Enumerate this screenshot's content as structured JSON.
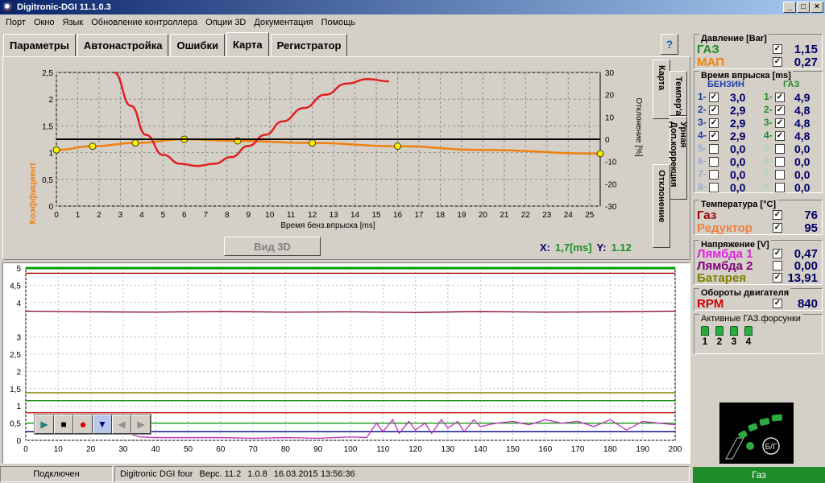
{
  "window": {
    "title": "Digitronic-DGI  11.1.0.3",
    "min": "_",
    "max": "□",
    "close": "×"
  },
  "menu": [
    "Порт",
    "Окно",
    "Язык",
    "Обновление контроллера",
    "Опции 3D",
    "Документация",
    "Помощь"
  ],
  "tabs": [
    "Параметры",
    "Автонастройка",
    "Ошибки",
    "Карта",
    "Регистратор"
  ],
  "active_tab": "Карта",
  "help_glyph": "?",
  "side_tabs": [
    "Карта",
    "Темпер'a",
    "Урная Доп.коррекция",
    "Отклонение"
  ],
  "map_chart": {
    "ylabel_left": "Коэффициент",
    "ylabel_right": "Отклонение [%]",
    "xlabel": "Время бенз.впрыска [ms]",
    "y_ticks_left": [
      "0",
      "0,5",
      "1",
      "1,5",
      "2",
      "2,5"
    ],
    "y_ticks_right": [
      "-30",
      "-20",
      "-10",
      "0",
      "10",
      "20",
      "30"
    ],
    "x_ticks": [
      "0",
      "1",
      "2",
      "3",
      "4",
      "5",
      "6",
      "7",
      "8",
      "9",
      "10",
      "11",
      "12",
      "13",
      "14",
      "15",
      "16",
      "17",
      "18",
      "19",
      "20",
      "21",
      "22",
      "23",
      "24",
      "25"
    ]
  },
  "chart_data": [
    {
      "type": "line",
      "title": "",
      "xlabel": "Время бенз.впрыска [ms]",
      "ylabel": "Коэффициент",
      "xlim": [
        0,
        25.5
      ],
      "ylim": [
        0,
        2.5
      ],
      "y2lim": [
        -30,
        30
      ],
      "grid": true,
      "series": [
        {
          "name": "",
          "axis": "left",
          "color": "#f08010",
          "x": [
            0,
            1.7,
            3.7,
            6.0,
            8.5,
            12.0,
            16.0,
            20.0,
            25.5
          ],
          "y": [
            1.05,
            1.12,
            1.18,
            1.25,
            1.22,
            1.18,
            1.12,
            1.05,
            0.98
          ]
        },
        {
          "name": "",
          "axis": "left",
          "color": "#ffee00",
          "markers": true,
          "x": [
            0,
            1.7,
            3.7,
            6.0,
            8.5,
            12.0,
            16.0,
            25.5
          ],
          "y": [
            1.05,
            1.12,
            1.18,
            1.25,
            1.22,
            1.18,
            1.12,
            0.98
          ]
        },
        {
          "name": "",
          "axis": "right",
          "color": "#e02020",
          "x": [
            2.7,
            3.5,
            4.2,
            5.0,
            5.8,
            6.6,
            7.4,
            8.2,
            9.0,
            9.8,
            10.6,
            11.6,
            12.6,
            13.6,
            14.6,
            15.6
          ],
          "y": [
            30,
            15,
            2,
            -7,
            -11,
            -12,
            -11,
            -8,
            -3,
            2,
            8,
            14,
            20,
            25,
            27,
            26
          ]
        },
        {
          "name": "",
          "axis": "left",
          "color": "#000000",
          "x": [
            0,
            25.5
          ],
          "y": [
            1.25,
            1.25
          ]
        }
      ]
    },
    {
      "type": "line",
      "title": "",
      "xlim": [
        0,
        200
      ],
      "ylim": [
        0,
        5
      ],
      "grid": true,
      "x_ticks": [
        0,
        10,
        20,
        30,
        40,
        50,
        60,
        70,
        80,
        90,
        100,
        110,
        120,
        130,
        140,
        150,
        160,
        170,
        180,
        190,
        200
      ],
      "y_ticks": [
        "0",
        "0,5",
        "1",
        "1,5",
        "2",
        "2,5",
        "3",
        "4",
        "4,5",
        "5"
      ],
      "series": [
        {
          "name": "",
          "color": "#00a000",
          "x": [
            0,
            200
          ],
          "y": [
            5.0,
            5.0
          ]
        },
        {
          "name": "",
          "color": "#a00000",
          "x": [
            0,
            200
          ],
          "y": [
            4.85,
            4.85
          ]
        },
        {
          "name": "",
          "color": "#800020",
          "x": [
            0,
            20,
            40,
            60,
            80,
            100,
            120,
            140,
            160,
            180,
            200
          ],
          "y": [
            3.75,
            3.73,
            3.72,
            3.74,
            3.72,
            3.73,
            3.71,
            3.74,
            3.72,
            3.73,
            3.75
          ]
        },
        {
          "name": "",
          "color": "#808000",
          "x": [
            0,
            200
          ],
          "y": [
            1.38,
            1.38
          ]
        },
        {
          "name": "",
          "color": "#008000",
          "x": [
            0,
            200
          ],
          "y": [
            1.15,
            1.15
          ]
        },
        {
          "name": "",
          "color": "#c00000",
          "x": [
            0,
            200
          ],
          "y": [
            0.8,
            0.8
          ]
        },
        {
          "name": "",
          "color": "#009000",
          "x": [
            0,
            200
          ],
          "y": [
            0.5,
            0.5
          ]
        },
        {
          "name": "",
          "color": "#000080",
          "x": [
            0,
            200
          ],
          "y": [
            0.25,
            0.25
          ]
        },
        {
          "name": "",
          "color": "#c030c0",
          "x": [
            30,
            35,
            40,
            50,
            60,
            70,
            80,
            90,
            100,
            105,
            108,
            110,
            113,
            115,
            118,
            120,
            123,
            125,
            128,
            130,
            133,
            135,
            138,
            140,
            145,
            150,
            155,
            160,
            165,
            170,
            175,
            180,
            185,
            190,
            195,
            200
          ],
          "y": [
            0.25,
            0.1,
            0.08,
            0.08,
            0.08,
            0.06,
            0.08,
            0.06,
            0.1,
            0.08,
            0.5,
            0.25,
            0.6,
            0.2,
            0.55,
            0.3,
            0.5,
            0.2,
            0.6,
            0.35,
            0.55,
            0.25,
            0.6,
            0.4,
            0.5,
            0.55,
            0.45,
            0.6,
            0.5,
            0.55,
            0.4,
            0.6,
            0.3,
            0.55,
            0.5,
            0.45
          ]
        }
      ]
    }
  ],
  "view3d_label": "Вид 3D",
  "coords": {
    "x_label": "X:",
    "x_value": "1,7[ms]",
    "y_label": "Y:",
    "y_value": "1.12"
  },
  "player": {
    "play": "▶",
    "stop": "■",
    "record": "●",
    "down": "▼",
    "prev": "◀",
    "next": "▶"
  },
  "status": {
    "connection": "Подключен",
    "device": "Digitronic DGI four",
    "version": "Верс. 11.2",
    "build": "1.0.8",
    "datetime": "16.03.2015 13:56:36",
    "mode": "Газ"
  },
  "pressure": {
    "title": "Давление [Bar]",
    "gas_label": "ГАЗ",
    "gas_value": "1,15",
    "map_label": "МАП",
    "map_value": "0,27"
  },
  "injection": {
    "title": "Время впрыска [ms]",
    "petrol_label": "БЕНЗИН",
    "gas_label": "ГАЗ",
    "petrol": [
      {
        "n": "1-",
        "v": "3,0"
      },
      {
        "n": "2-",
        "v": "2,9"
      },
      {
        "n": "3-",
        "v": "2,9"
      },
      {
        "n": "4-",
        "v": "2,9"
      },
      {
        "n": "5-",
        "v": "0,0"
      },
      {
        "n": "6-",
        "v": "0,0"
      },
      {
        "n": "7-",
        "v": "0,0"
      },
      {
        "n": "8-",
        "v": "0,0"
      }
    ],
    "gas": [
      {
        "n": "1-",
        "v": "4,9"
      },
      {
        "n": "2-",
        "v": "4,8"
      },
      {
        "n": "3-",
        "v": "4,8"
      },
      {
        "n": "4-",
        "v": "4,8"
      },
      {
        "n": "5-",
        "v": "0,0"
      },
      {
        "n": "6-",
        "v": "0,0"
      },
      {
        "n": "7-",
        "v": "0,0"
      },
      {
        "n": "8-",
        "v": "0,0"
      }
    ],
    "checked_count": 4,
    "check_mark": "✓"
  },
  "temperature": {
    "title": "Температура [°C]",
    "gas_label": "Газ",
    "gas_value": "76",
    "reducer_label": "Редуктор",
    "reducer_value": "95"
  },
  "voltage": {
    "title": "Напряжение [V]",
    "lambda1_label": "Лямбда 1",
    "lambda1_value": "0,47",
    "lambda2_label": "Лямбда 2",
    "lambda2_value": "0,00",
    "battery_label": "Батарея",
    "battery_value": "13,91"
  },
  "rpm": {
    "title": "Обороты двигателя",
    "label": "RPM",
    "value": "840"
  },
  "injectors": {
    "title": "Активные ГАЗ.форсунки",
    "numbers": [
      "1",
      "2",
      "3",
      "4"
    ]
  },
  "gauge_label": "Б/Г",
  "colors": {
    "accent_green": "#1e8c28",
    "orange": "#f08010",
    "red": "#e02020",
    "navy": "#000066"
  }
}
